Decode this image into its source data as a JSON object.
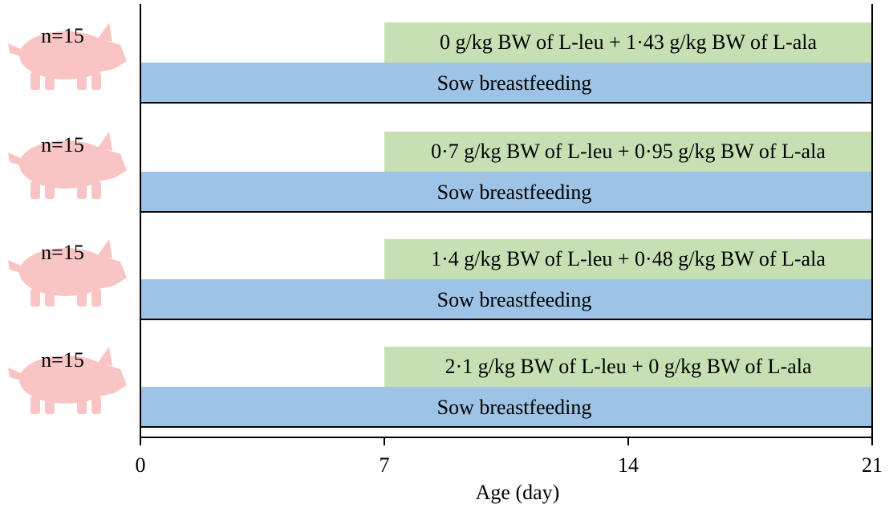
{
  "groups": [
    {
      "n_label": "n=15",
      "supplement": "0 g/kg BW of L-leu + 1·43 g/kg BW of L-ala",
      "base": "Sow breastfeeding"
    },
    {
      "n_label": "n=15",
      "supplement": "0·7 g/kg BW of L-leu + 0·95 g/kg BW of L-ala",
      "base": "Sow breastfeeding"
    },
    {
      "n_label": "n=15",
      "supplement": "1·4 g/kg BW of L-leu + 0·48 g/kg BW of L-ala",
      "base": "Sow breastfeeding"
    },
    {
      "n_label": "n=15",
      "supplement": "2·1 g/kg BW of L-leu + 0 g/kg BW of L-ala",
      "base": "Sow breastfeeding"
    }
  ],
  "axis": {
    "label": "Age (day)",
    "ticks": [
      0,
      7,
      14,
      21
    ],
    "tick_labels": [
      "0",
      "7",
      "14",
      "21"
    ],
    "range": [
      0,
      21
    ]
  },
  "timeline": {
    "supplement_days": [
      7,
      21
    ],
    "base_days": [
      0,
      21
    ]
  },
  "colors": {
    "supplement_bar": "#c6e0b4",
    "base_bar": "#9dc3e6",
    "pig_icon": "#f8c4c4",
    "lines": "#000000"
  },
  "icon": "pig-icon"
}
